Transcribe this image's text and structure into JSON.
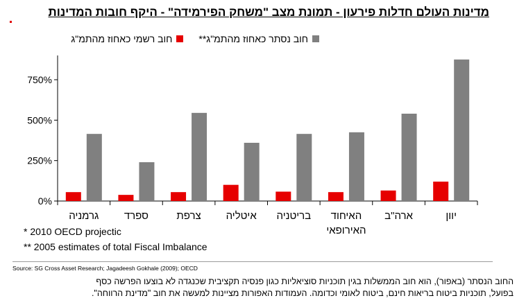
{
  "title": "מדינות העולם חדלות פירעון - תמונת מצב \"משחק הפירמידה\" - היקף חובות המדינות",
  "colors": {
    "official": "#e60000",
    "hidden": "#808080",
    "axis": "#000000"
  },
  "legend": {
    "official": "חוב רשמי כאחוז מהתמ\"ג",
    "hidden": "חוב נסתר כאחוז מהתמ\"ג**"
  },
  "chart_data": {
    "type": "bar",
    "categories": [
      "יוון",
      "ארה\"ב",
      "האיחוד האירופאי",
      "בריטניה",
      "איטליה",
      "צרפת",
      "ספרד",
      "גרמניה"
    ],
    "category_lines": [
      [
        "יוון"
      ],
      [
        "ארה\"ב"
      ],
      [
        "האיחוד",
        "האירופאי"
      ],
      [
        "בריטניה"
      ],
      [
        "איטליה"
      ],
      [
        "צרפת"
      ],
      [
        "ספרד"
      ],
      [
        "גרמניה"
      ]
    ],
    "series": [
      {
        "name": "חוב רשמי כאחוז מהתמ\"ג",
        "values": [
          120,
          65,
          55,
          58,
          100,
          55,
          38,
          55
        ]
      },
      {
        "name": "חוב נסתר כאחוז מהתמ\"ג**",
        "values": [
          875,
          540,
          425,
          415,
          360,
          545,
          240,
          415
        ]
      }
    ],
    "yticks": [
      0,
      250,
      500,
      750
    ],
    "ytick_labels": [
      "0%",
      "250%",
      "500%",
      "750%"
    ],
    "ylim": [
      0,
      900
    ],
    "axis_direction": "right-to-left",
    "grid": false,
    "legend_position": "top"
  },
  "notes": [
    "* 2010 OECD projectic",
    "** 2005 estimates of total Fiscal Imbalance"
  ],
  "source": "Source: SG Cross Asset Research; Jagadeesh Gokhale (2009); OECD",
  "explanation": [
    "החוב הנסתר (באפור), הוא חוב הממשלות בגין תוכניות סוציאליות כגון פנסיה תקציבית שכנגדה לא בוצעו הפרשה כסף",
    "בפועל, תוכניות ביטוח בריאות חינם, ביטוח לאומי וכדומה. העמודות האפורות מציינות למעשה את חוב \"מדינת הרווחה\"."
  ]
}
